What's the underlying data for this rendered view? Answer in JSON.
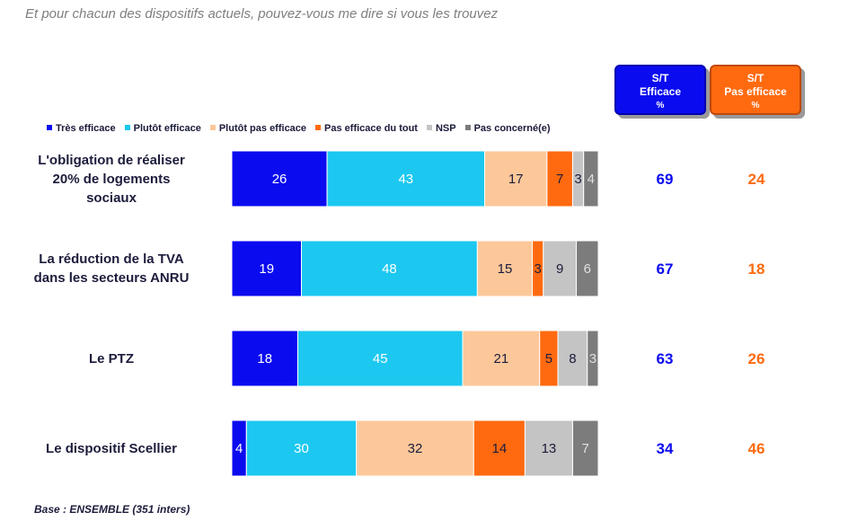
{
  "title": "Et pour chacun des dispositifs actuels, pouvez-vous me dire si vous les trouvez",
  "footer": "Base : ENSEMBLE (351 inters)",
  "summary_headers": {
    "efficace": {
      "line1": "S/T",
      "line2": "Efficace",
      "line3": "%",
      "color": "#0b0bf0"
    },
    "pas_efficace": {
      "line1": "S/T",
      "line2": "Pas efficace",
      "line3": "%",
      "color": "#ff6a10"
    }
  },
  "chart_data": {
    "type": "bar",
    "orientation": "horizontal",
    "stacked": true,
    "title": "Et pour chacun des dispositifs actuels, pouvez-vous me dire si vous les trouvez",
    "categories": [
      "L'obligation de réaliser 20% de logements sociaux",
      "La réduction de la TVA dans les secteurs ANRU",
      "Le PTZ",
      "Le dispositif Scellier"
    ],
    "category_lines": [
      [
        "L'obligation de réaliser",
        "20% de logements",
        "sociaux"
      ],
      [
        "La réduction de la TVA",
        "dans les secteurs ANRU"
      ],
      [
        "Le PTZ"
      ],
      [
        "Le dispositif Scellier"
      ]
    ],
    "series": [
      {
        "name": "Très efficace",
        "color": "#0b0bf0",
        "label_color": "#ffffff",
        "values": [
          26,
          19,
          18,
          4
        ]
      },
      {
        "name": "Plutôt efficace",
        "color": "#1cc8f0",
        "label_color": "#ffffff",
        "values": [
          43,
          48,
          45,
          30
        ]
      },
      {
        "name": "Plutôt pas efficace",
        "color": "#fcc89a",
        "label_color": "#1c1c3c",
        "values": [
          17,
          15,
          21,
          32
        ]
      },
      {
        "name": "Pas efficace du tout",
        "color": "#ff6a10",
        "label_color": "#1c1c3c",
        "values": [
          7,
          3,
          5,
          14
        ]
      },
      {
        "name": "NSP",
        "color": "#c4c4c4",
        "label_color": "#1c1c3c",
        "values": [
          3,
          9,
          8,
          13
        ]
      },
      {
        "name": "Pas concerné(e)",
        "color": "#7c7c7c",
        "label_color": "#e0e0e0",
        "values": [
          4,
          6,
          3,
          7
        ]
      }
    ],
    "totals": {
      "efficace": [
        69,
        67,
        63,
        34
      ],
      "pas_efficace": [
        24,
        18,
        26,
        46
      ]
    },
    "legend_position": "top"
  }
}
